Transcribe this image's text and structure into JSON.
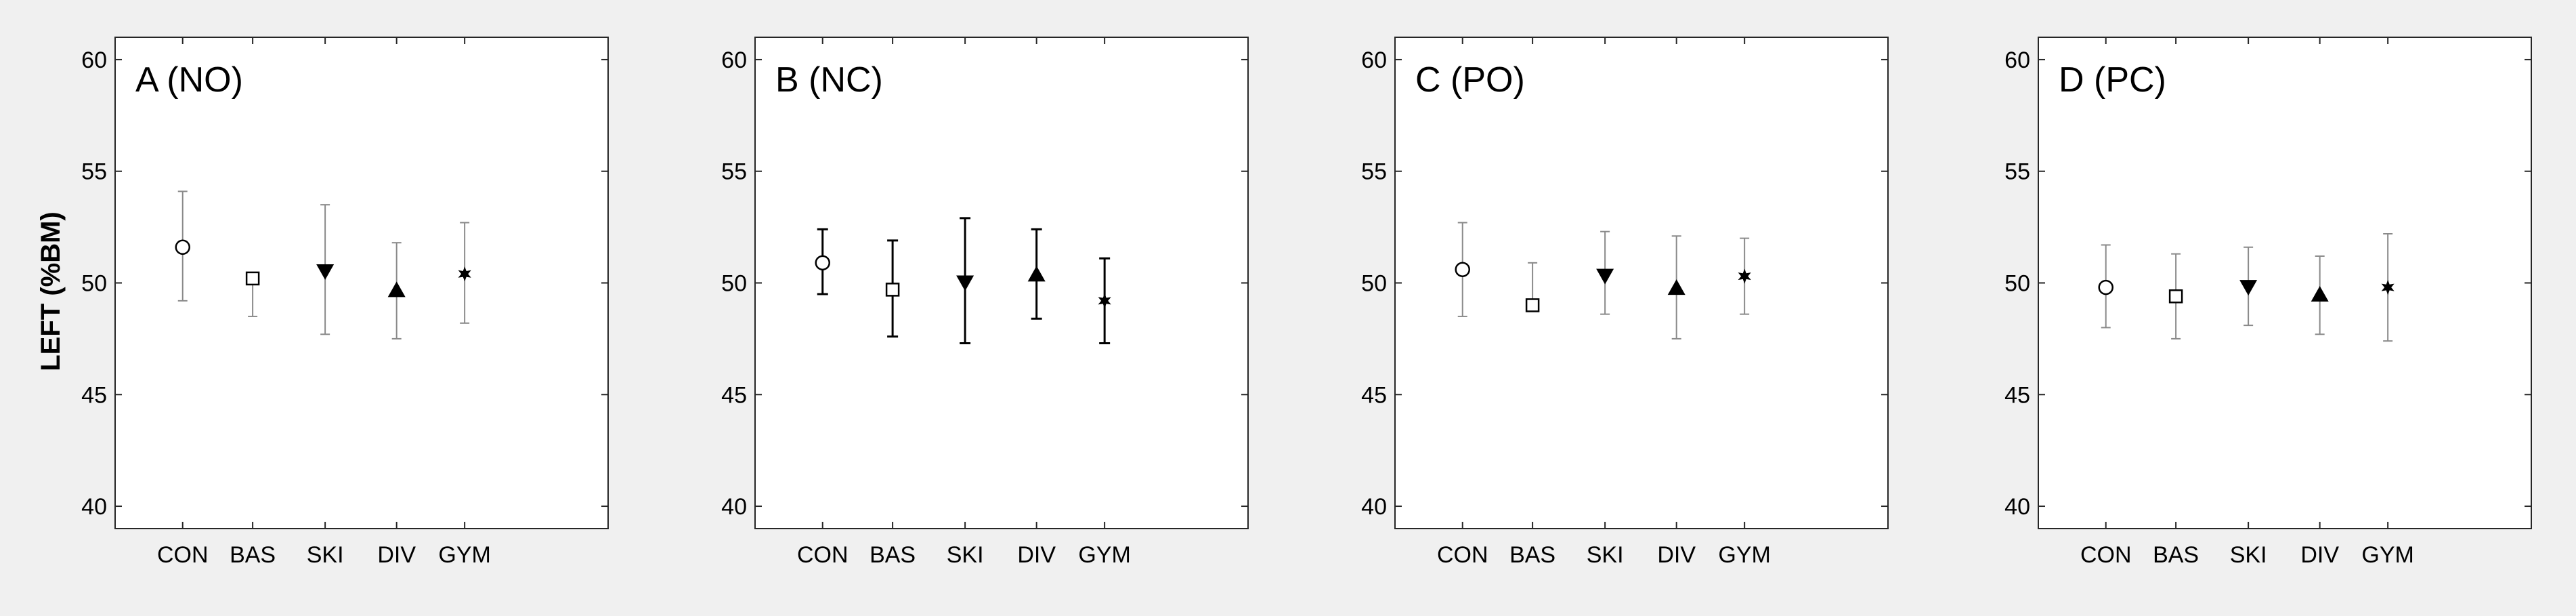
{
  "figure": {
    "ylabel": "LEFT (%BM)",
    "categories": [
      "CON",
      "BAS",
      "SKI",
      "DIV",
      "GYM"
    ],
    "yticks": [
      40,
      45,
      50,
      55,
      60
    ],
    "markers": [
      "circle",
      "square",
      "triangle-down",
      "triangle-up",
      "star"
    ]
  },
  "chart_data": [
    {
      "type": "scatter",
      "title": "A (NO)",
      "ylabel": "LEFT (%BM)",
      "categories": [
        "CON",
        "BAS",
        "SKI",
        "DIV",
        "GYM"
      ],
      "ylim": [
        39,
        61
      ],
      "yticks": [
        40,
        45,
        50,
        55,
        60
      ],
      "series": [
        {
          "name": "A (NO)",
          "mean": [
            51.6,
            50.2,
            50.5,
            49.7,
            50.4
          ],
          "lower": [
            49.2,
            48.5,
            47.7,
            47.5,
            48.2
          ],
          "upper": [
            54.1,
            50.2,
            53.5,
            51.8,
            52.7
          ]
        }
      ]
    },
    {
      "type": "scatter",
      "title": "B (NC)",
      "ylabel": "",
      "categories": [
        "CON",
        "BAS",
        "SKI",
        "DIV",
        "GYM"
      ],
      "ylim": [
        39,
        61
      ],
      "yticks": [
        40,
        45,
        50,
        55,
        60
      ],
      "series": [
        {
          "name": "B (NC)",
          "mean": [
            50.9,
            49.7,
            50.0,
            50.4,
            49.2
          ],
          "lower": [
            49.5,
            47.6,
            47.3,
            48.4,
            47.3
          ],
          "upper": [
            52.4,
            51.9,
            52.9,
            52.4,
            51.1
          ]
        }
      ]
    },
    {
      "type": "scatter",
      "title": "C (PO)",
      "ylabel": "",
      "categories": [
        "CON",
        "BAS",
        "SKI",
        "DIV",
        "GYM"
      ],
      "ylim": [
        39,
        61
      ],
      "yticks": [
        40,
        45,
        50,
        55,
        60
      ],
      "series": [
        {
          "name": "C (PO)",
          "mean": [
            50.6,
            49.0,
            50.3,
            49.8,
            50.3
          ],
          "lower": [
            48.5,
            49.0,
            48.6,
            47.5,
            48.6
          ],
          "upper": [
            52.7,
            50.9,
            52.3,
            52.1,
            52.0
          ]
        }
      ]
    },
    {
      "type": "scatter",
      "title": "D (PC)",
      "ylabel": "",
      "categories": [
        "CON",
        "BAS",
        "SKI",
        "DIV",
        "GYM"
      ],
      "ylim": [
        39,
        61
      ],
      "yticks": [
        40,
        45,
        50,
        55,
        60
      ],
      "series": [
        {
          "name": "D (PC)",
          "mean": [
            49.8,
            49.4,
            49.8,
            49.5,
            49.8
          ],
          "lower": [
            48.0,
            47.5,
            48.1,
            47.7,
            47.4
          ],
          "upper": [
            51.7,
            51.3,
            51.6,
            51.2,
            52.2
          ]
        }
      ]
    }
  ]
}
